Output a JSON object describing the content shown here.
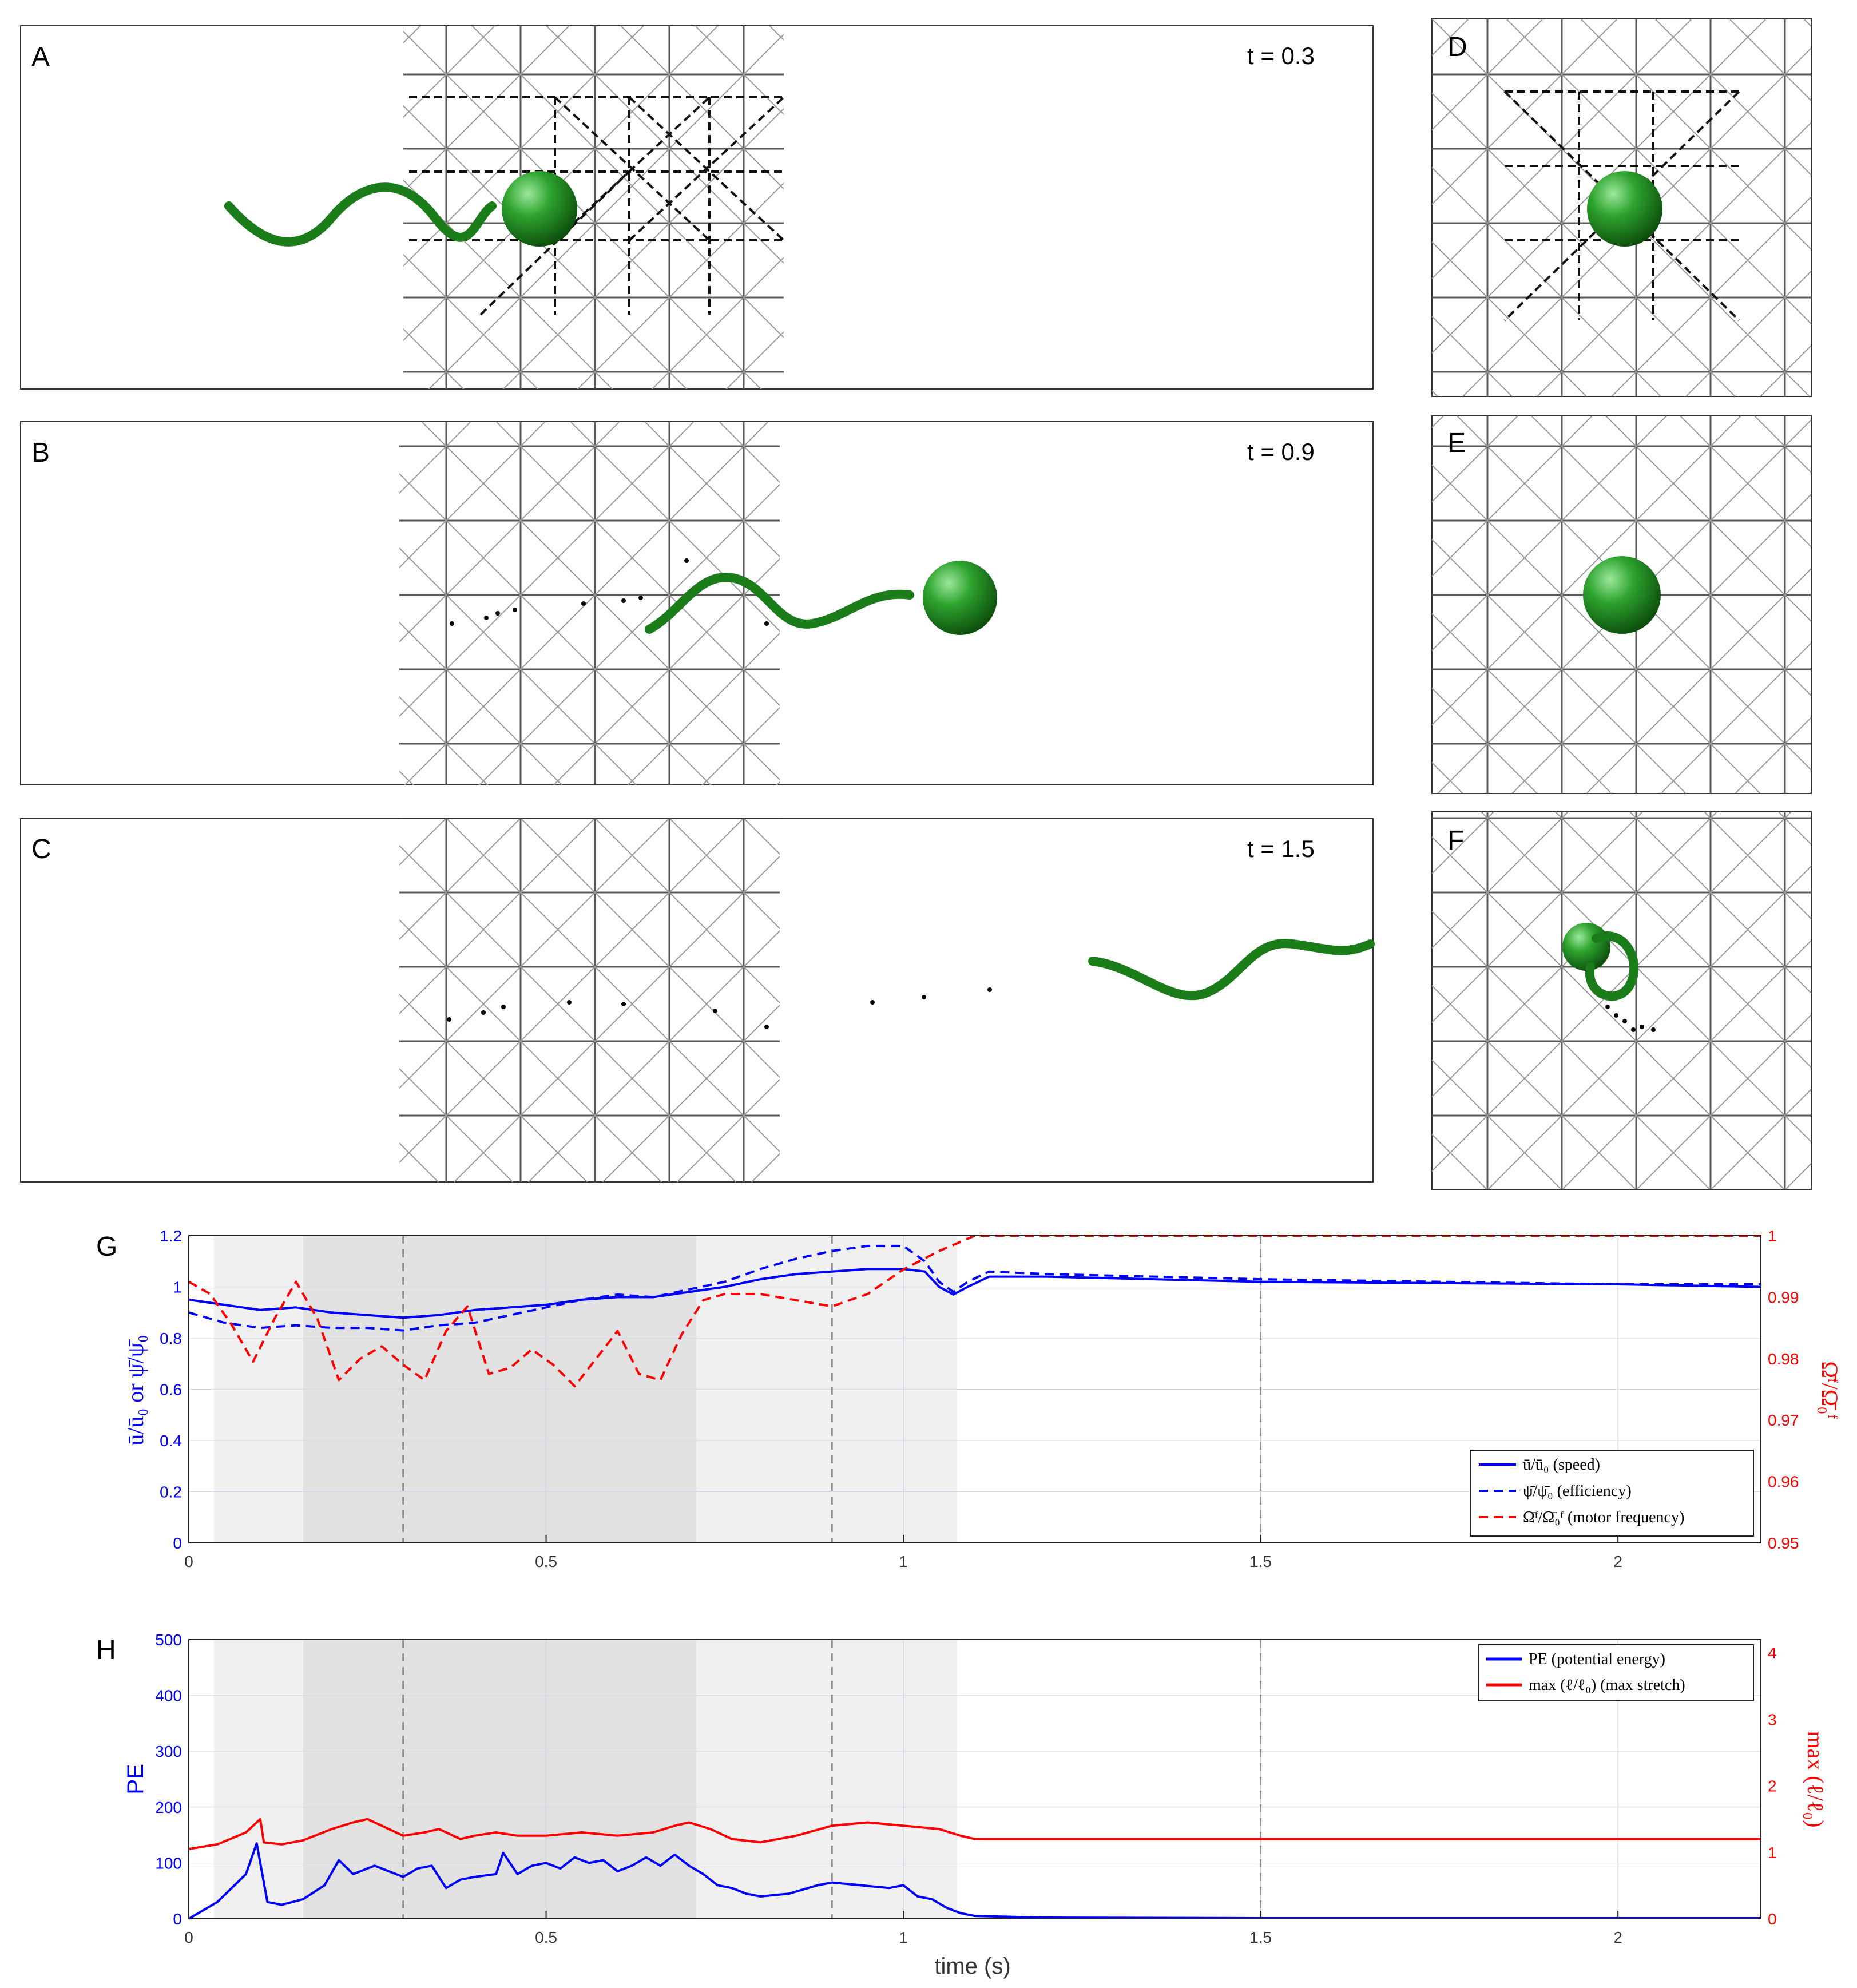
{
  "panels": {
    "top_labels": [
      "A",
      "B",
      "C"
    ],
    "side_labels": [
      "D",
      "E",
      "F"
    ],
    "times": [
      "t = 0.3",
      "t = 0.9",
      "t = 1.5"
    ]
  },
  "colors": {
    "blue": "#0000ff",
    "red": "#ff0000",
    "green": "#1a8a1a",
    "shade_light": "#f0f0f0",
    "shade_dark": "#e2e2e2"
  },
  "chart_data": [
    {
      "id": "G",
      "label": "G",
      "type": "line",
      "xlabel": "",
      "ylabel_left": "ū/ū₀ or ψ̄/ψ̄₀",
      "ylabel_right": "Ω̄ᶠ/Ω̄₀ᶠ",
      "xlim": [
        0,
        2.2
      ],
      "ylim_left": [
        0,
        1.2
      ],
      "ylim_right": [
        0.95,
        1.0
      ],
      "xticks": [
        "0",
        "0.5",
        "1",
        "1.5",
        "2"
      ],
      "xtick_values": [
        0,
        0.5,
        1,
        1.5,
        2
      ],
      "yticks_left": [
        "0",
        "0.2",
        "0.4",
        "0.6",
        "0.8",
        "1",
        "1.2"
      ],
      "ytick_values_left": [
        0,
        0.2,
        0.4,
        0.6,
        0.8,
        1,
        1.2
      ],
      "yticks_right": [
        "0.95",
        "0.96",
        "0.97",
        "0.98",
        "0.99",
        "1"
      ],
      "ytick_values_right": [
        0.95,
        0.96,
        0.97,
        0.98,
        0.99,
        1.0
      ],
      "shaded_regions": [
        {
          "from": 0.035,
          "to": 0.16,
          "shade": "light"
        },
        {
          "from": 0.16,
          "to": 0.71,
          "shade": "dark"
        },
        {
          "from": 0.71,
          "to": 1.075,
          "shade": "light"
        }
      ],
      "vlines": [
        0.3,
        0.9,
        1.5
      ],
      "series": [
        {
          "name": "ū/ū₀ (speed)",
          "axis": "left",
          "style": "solid",
          "x": [
            0,
            0.05,
            0.1,
            0.15,
            0.2,
            0.25,
            0.3,
            0.35,
            0.4,
            0.45,
            0.5,
            0.55,
            0.6,
            0.65,
            0.7,
            0.75,
            0.8,
            0.85,
            0.9,
            0.95,
            1.0,
            1.03,
            1.05,
            1.07,
            1.09,
            1.12,
            1.2,
            1.5,
            2.0,
            2.2
          ],
          "values": [
            0.95,
            0.93,
            0.91,
            0.92,
            0.9,
            0.89,
            0.88,
            0.89,
            0.91,
            0.92,
            0.93,
            0.95,
            0.96,
            0.96,
            0.98,
            1.0,
            1.03,
            1.05,
            1.06,
            1.07,
            1.07,
            1.06,
            1.0,
            0.97,
            1.0,
            1.04,
            1.04,
            1.02,
            1.01,
            1.0
          ]
        },
        {
          "name": "ψ̄/ψ̄₀ (efficiency)",
          "axis": "left",
          "style": "dashed",
          "x": [
            0,
            0.05,
            0.1,
            0.15,
            0.2,
            0.25,
            0.3,
            0.35,
            0.4,
            0.45,
            0.5,
            0.55,
            0.6,
            0.65,
            0.7,
            0.75,
            0.8,
            0.85,
            0.9,
            0.95,
            1.0,
            1.03,
            1.05,
            1.07,
            1.09,
            1.12,
            1.2,
            1.5,
            2.0,
            2.2
          ],
          "values": [
            0.9,
            0.86,
            0.84,
            0.85,
            0.84,
            0.84,
            0.83,
            0.85,
            0.86,
            0.89,
            0.92,
            0.95,
            0.97,
            0.96,
            0.99,
            1.02,
            1.07,
            1.11,
            1.14,
            1.16,
            1.16,
            1.1,
            1.02,
            0.98,
            1.02,
            1.06,
            1.05,
            1.03,
            1.01,
            1.01
          ]
        },
        {
          "name": "Ω̄ᶠ/Ω̄₀ᶠ (motor frequency)",
          "axis": "right",
          "style": "dashed",
          "x": [
            0,
            0.03,
            0.06,
            0.09,
            0.12,
            0.15,
            0.18,
            0.21,
            0.24,
            0.27,
            0.3,
            0.33,
            0.36,
            0.39,
            0.42,
            0.45,
            0.48,
            0.51,
            0.54,
            0.57,
            0.6,
            0.63,
            0.66,
            0.69,
            0.72,
            0.75,
            0.8,
            0.85,
            0.9,
            0.95,
            1.0,
            1.05,
            1.1,
            1.2,
            2.2
          ],
          "values": [
            0.9925,
            0.9905,
            0.9855,
            0.9795,
            0.9865,
            0.9925,
            0.9865,
            0.9765,
            0.98,
            0.982,
            0.979,
            0.9765,
            0.9845,
            0.9885,
            0.9775,
            0.9785,
            0.9815,
            0.979,
            0.9755,
            0.98,
            0.9845,
            0.9775,
            0.9765,
            0.984,
            0.9895,
            0.9905,
            0.9905,
            0.9895,
            0.9885,
            0.9905,
            0.9945,
            0.9975,
            1.0,
            1.0,
            1.0
          ]
        }
      ],
      "legend": [
        "ū/ū₀ (speed)",
        "ψ̄/ψ̄₀ (efficiency)",
        "Ω̄ᶠ/Ω̄₀ᶠ (motor frequency)"
      ]
    },
    {
      "id": "H",
      "label": "H",
      "type": "line",
      "xlabel": "time (s)",
      "ylabel_left": "PE",
      "ylabel_right": "max (ℓ/ℓ₀)",
      "xlim": [
        0,
        2.2
      ],
      "ylim_left": [
        0,
        500
      ],
      "ylim_right": [
        0,
        4.2
      ],
      "xticks": [
        "0",
        "0.5",
        "1",
        "1.5",
        "2"
      ],
      "xtick_values": [
        0,
        0.5,
        1,
        1.5,
        2
      ],
      "yticks_left": [
        "0",
        "100",
        "200",
        "300",
        "400",
        "500"
      ],
      "ytick_values_left": [
        0,
        100,
        200,
        300,
        400,
        500
      ],
      "yticks_right": [
        "0",
        "1",
        "2",
        "3",
        "4"
      ],
      "ytick_values_right": [
        0,
        1,
        2,
        3,
        4
      ],
      "shaded_regions": [
        {
          "from": 0.035,
          "to": 0.16,
          "shade": "light"
        },
        {
          "from": 0.16,
          "to": 0.71,
          "shade": "dark"
        },
        {
          "from": 0.71,
          "to": 1.075,
          "shade": "light"
        }
      ],
      "vlines": [
        0.3,
        0.9,
        1.5
      ],
      "series": [
        {
          "name": "PE (potential energy)",
          "axis": "left",
          "style": "solid",
          "x": [
            0,
            0.04,
            0.08,
            0.095,
            0.11,
            0.13,
            0.16,
            0.19,
            0.21,
            0.23,
            0.26,
            0.28,
            0.3,
            0.32,
            0.34,
            0.36,
            0.38,
            0.4,
            0.43,
            0.44,
            0.46,
            0.48,
            0.5,
            0.52,
            0.54,
            0.56,
            0.58,
            0.6,
            0.62,
            0.64,
            0.66,
            0.68,
            0.7,
            0.72,
            0.74,
            0.76,
            0.78,
            0.8,
            0.84,
            0.88,
            0.9,
            0.94,
            0.98,
            1.0,
            1.02,
            1.04,
            1.06,
            1.08,
            1.1,
            1.2,
            1.5,
            2.2
          ],
          "values": [
            0,
            30,
            80,
            135,
            30,
            25,
            35,
            60,
            105,
            80,
            95,
            85,
            75,
            90,
            95,
            55,
            70,
            75,
            80,
            118,
            80,
            95,
            100,
            90,
            110,
            100,
            105,
            85,
            95,
            110,
            95,
            115,
            95,
            80,
            60,
            55,
            45,
            40,
            45,
            60,
            65,
            60,
            55,
            60,
            40,
            35,
            20,
            10,
            5,
            2,
            1,
            1
          ]
        },
        {
          "name": "max (ℓ/ℓ₀) (max stretch)",
          "axis": "right",
          "style": "solid",
          "x": [
            0,
            0.04,
            0.08,
            0.1,
            0.105,
            0.13,
            0.16,
            0.2,
            0.23,
            0.25,
            0.28,
            0.3,
            0.33,
            0.35,
            0.38,
            0.4,
            0.43,
            0.46,
            0.5,
            0.55,
            0.6,
            0.65,
            0.68,
            0.7,
            0.73,
            0.76,
            0.8,
            0.85,
            0.9,
            0.95,
            1.0,
            1.05,
            1.08,
            1.1,
            1.2,
            1.5,
            2.2
          ],
          "values": [
            1.05,
            1.12,
            1.3,
            1.5,
            1.15,
            1.12,
            1.18,
            1.35,
            1.45,
            1.5,
            1.35,
            1.25,
            1.3,
            1.35,
            1.2,
            1.25,
            1.3,
            1.25,
            1.25,
            1.3,
            1.25,
            1.3,
            1.4,
            1.45,
            1.35,
            1.2,
            1.15,
            1.25,
            1.4,
            1.45,
            1.4,
            1.35,
            1.25,
            1.2,
            1.2,
            1.2,
            1.2
          ]
        }
      ],
      "legend": [
        "PE (potential energy)",
        "max (ℓ/ℓ₀) (max stretch)"
      ]
    }
  ]
}
